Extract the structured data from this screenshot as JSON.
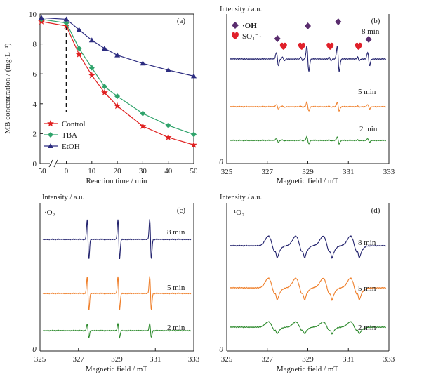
{
  "colors": {
    "control": "#e02020",
    "tba": "#2fa36b",
    "etoh": "#2c2c80",
    "spec8": "#23236e",
    "spec5": "#ef7f2a",
    "spec2": "#2e8b2e",
    "marker_oh": "#5a2d6e",
    "marker_so4": "#e0202a"
  },
  "chart_data": [
    {
      "panel": "(a)",
      "type": "line",
      "xlabel": "Reaction time / min",
      "ylabel": "MB concentration / (mg·L⁻¹)",
      "xticks": [
        "−50",
        "0",
        "10",
        "20",
        "30",
        "40",
        "50"
      ],
      "yticks": [
        "0",
        "2",
        "4",
        "6",
        "8",
        "10"
      ],
      "ylim": [
        0,
        10
      ],
      "xlim": [
        0,
        50
      ],
      "axis_break": true,
      "legend_position": "bottom-left",
      "series": [
        {
          "name": "Control",
          "marker": "star",
          "x": [
            -50,
            0,
            5,
            10,
            15,
            20,
            30,
            40,
            50
          ],
          "values": [
            9.5,
            9.2,
            7.3,
            5.9,
            4.75,
            3.85,
            2.5,
            1.75,
            1.25
          ]
        },
        {
          "name": "TBA",
          "marker": "diamond",
          "x": [
            -50,
            0,
            5,
            10,
            15,
            20,
            30,
            40,
            50
          ],
          "values": [
            9.65,
            9.4,
            7.7,
            6.4,
            5.15,
            4.5,
            3.35,
            2.55,
            1.95
          ]
        },
        {
          "name": "EtOH",
          "marker": "triangle",
          "x": [
            -50,
            0,
            5,
            10,
            15,
            20,
            30,
            40,
            50
          ],
          "values": [
            9.75,
            9.65,
            8.95,
            8.25,
            7.7,
            7.25,
            6.7,
            6.25,
            5.85
          ]
        }
      ]
    },
    {
      "panel": "(b)",
      "type": "line",
      "ylabel": "Intensity / a.u.",
      "xlabel": "Magnetic field / mT",
      "xticks": [
        "325",
        "327",
        "329",
        "331",
        "333"
      ],
      "xlim": [
        325,
        333
      ],
      "y_origin_label": "0",
      "series_labels": [
        "8 min",
        "5 min",
        "2 min"
      ],
      "legend_entries": [
        "·OH",
        "SO₄⁻·"
      ],
      "oh_peaks_mT": [
        327.5,
        329.0,
        330.5,
        332.0
      ],
      "so4_peaks_mT": [
        327.8,
        328.7,
        330.1,
        331.5
      ]
    },
    {
      "panel": "(c)",
      "type": "line",
      "ylabel": "Intensity / a.u.",
      "xlabel": "Magnetic field / mT",
      "xticks": [
        "325",
        "327",
        "329",
        "331",
        "333"
      ],
      "xlim": [
        325,
        333
      ],
      "y_origin_label": "0",
      "species_label": "·O₂⁻",
      "series_labels": [
        "8 min",
        "5 min",
        "2 min"
      ]
    },
    {
      "panel": "(d)",
      "type": "line",
      "ylabel": "Intensity / a.u.",
      "xlabel": "Magnetic field / mT",
      "xticks": [
        "325",
        "327",
        "329",
        "331",
        "333"
      ],
      "xlim": [
        325,
        333
      ],
      "y_origin_label": "0",
      "species_label": "¹O₂",
      "series_labels": [
        "8 min",
        "5 min",
        "2 min"
      ]
    }
  ]
}
